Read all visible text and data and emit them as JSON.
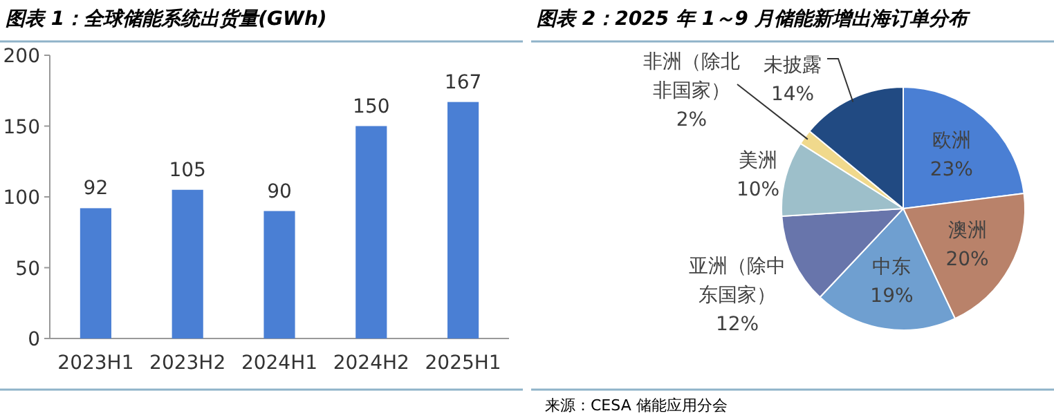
{
  "chart_data": [
    {
      "type": "bar",
      "title": "图表 1：全球储能系统出货量(GWh)",
      "categories": [
        "2023H1",
        "2023H2",
        "2024H1",
        "2024H2",
        "2025H1"
      ],
      "values": [
        92,
        105,
        90,
        150,
        167
      ],
      "color": "#4a7fd4",
      "ylim": [
        0,
        200
      ],
      "yticks": [
        0,
        50,
        100,
        150,
        200
      ],
      "data_labels": true
    },
    {
      "type": "pie",
      "title": "图表 2：2025 年 1～9 月储能新增出海订单分布",
      "categories": [
        "欧洲",
        "澳洲",
        "中东",
        "亚洲（除中东国家）",
        "美洲",
        "非洲（除北非国家）",
        "未披露"
      ],
      "values": [
        23,
        20,
        19,
        12,
        10,
        2,
        14
      ],
      "value_labels": [
        "23%",
        "20%",
        "19%",
        "12%",
        "10%",
        "2%",
        "14%"
      ],
      "colors": [
        "#4a7fd4",
        "#b9826a",
        "#6f9fd0",
        "#6875ab",
        "#9dbfca",
        "#f0d98c",
        "#214a82"
      ],
      "annotations": [
        "来源：CESA 储能应用分会"
      ]
    }
  ]
}
